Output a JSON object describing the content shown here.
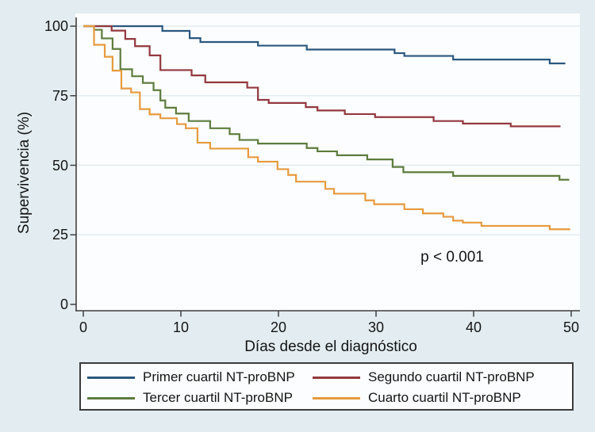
{
  "figure": {
    "background": "#e3edf1",
    "plot_background": "#fbfdfe",
    "gridline_color": "#dfe9f0",
    "axis_color": "#3f3f3f",
    "text_color": "#141414",
    "legend_border_color": "#3c3c3c"
  },
  "chart_data": {
    "type": "line",
    "subtype": "kaplan-meier-step",
    "title": "",
    "xlabel": "Días desde el diagnóstico",
    "ylabel": "Supervivencia (%)",
    "annotation": "p < 0.001",
    "xlim": [
      0,
      51
    ],
    "ylim": [
      0,
      100
    ],
    "x_ticks": [
      0,
      10,
      20,
      30,
      40,
      50
    ],
    "y_ticks": [
      0,
      25,
      50,
      75,
      100
    ],
    "grid": "horizontal-only",
    "legend_position": "bottom",
    "series": [
      {
        "name": "Primer cuartil NT-proBNP",
        "color": "#2b577e",
        "points": [
          [
            0,
            100
          ],
          [
            8.1,
            98.3
          ],
          [
            10.9,
            95.7
          ],
          [
            12,
            94.3
          ],
          [
            17.9,
            93
          ],
          [
            22.9,
            91.6
          ],
          [
            31.9,
            90.3
          ],
          [
            32.9,
            89.3
          ],
          [
            37.9,
            88
          ],
          [
            47.8,
            86.6
          ],
          [
            49.4,
            86.6
          ]
        ]
      },
      {
        "name": "Segundo cuartil NT-proBNP",
        "color": "#93383f",
        "points": [
          [
            0,
            100
          ],
          [
            2.9,
            98.4
          ],
          [
            4.3,
            95.4
          ],
          [
            5.3,
            92.8
          ],
          [
            6.8,
            89.5
          ],
          [
            7.9,
            84.2
          ],
          [
            11.1,
            82.3
          ],
          [
            12.5,
            79.8
          ],
          [
            16.8,
            77.9
          ],
          [
            17.9,
            73.5
          ],
          [
            19,
            72.4
          ],
          [
            22.8,
            70.9
          ],
          [
            24,
            69.7
          ],
          [
            26.8,
            68.4
          ],
          [
            29.9,
            67.3
          ],
          [
            35.9,
            65.9
          ],
          [
            38.9,
            65
          ],
          [
            43.8,
            64
          ],
          [
            48.9,
            64
          ]
        ]
      },
      {
        "name": "Tercer cuartil NT-proBNP",
        "color": "#5e7c3e",
        "points": [
          [
            0,
            100
          ],
          [
            1.1,
            98.7
          ],
          [
            1.9,
            95.6
          ],
          [
            3,
            91.8
          ],
          [
            3.8,
            84.5
          ],
          [
            5,
            82
          ],
          [
            6.1,
            79.6
          ],
          [
            7.2,
            77
          ],
          [
            7.9,
            73.3
          ],
          [
            8.4,
            70.7
          ],
          [
            9.5,
            68.6
          ],
          [
            10.8,
            65.9
          ],
          [
            13,
            63.3
          ],
          [
            15,
            61.2
          ],
          [
            16,
            59.1
          ],
          [
            17.9,
            57.8
          ],
          [
            22.9,
            56.2
          ],
          [
            24,
            55
          ],
          [
            26,
            53.6
          ],
          [
            29.1,
            52.1
          ],
          [
            31.7,
            49.4
          ],
          [
            32.8,
            47.5
          ],
          [
            37.9,
            46.2
          ],
          [
            48.8,
            44.8
          ],
          [
            49.8,
            44.8
          ]
        ]
      },
      {
        "name": "Cuarto cuartil NT-proBNP",
        "color": "#e79a3f",
        "points": [
          [
            0,
            100
          ],
          [
            1.1,
            93.3
          ],
          [
            2.2,
            89
          ],
          [
            3,
            84
          ],
          [
            3.9,
            77.6
          ],
          [
            4.9,
            76.2
          ],
          [
            5.8,
            70.2
          ],
          [
            6.8,
            68.3
          ],
          [
            7.9,
            66.9
          ],
          [
            9.6,
            64.8
          ],
          [
            10.5,
            63.3
          ],
          [
            11.7,
            58.1
          ],
          [
            13,
            56
          ],
          [
            16.9,
            52.9
          ],
          [
            17.9,
            51.3
          ],
          [
            19.9,
            48.6
          ],
          [
            21,
            46.5
          ],
          [
            21.8,
            44.1
          ],
          [
            24.8,
            41.5
          ],
          [
            25.7,
            39.8
          ],
          [
            28.9,
            37.4
          ],
          [
            29.8,
            36
          ],
          [
            32.9,
            34.2
          ],
          [
            34.8,
            32.7
          ],
          [
            36.9,
            31.5
          ],
          [
            37.9,
            30.1
          ],
          [
            38.9,
            29.4
          ],
          [
            40.8,
            28.2
          ],
          [
            47.8,
            27
          ],
          [
            49.9,
            27
          ]
        ]
      }
    ]
  }
}
